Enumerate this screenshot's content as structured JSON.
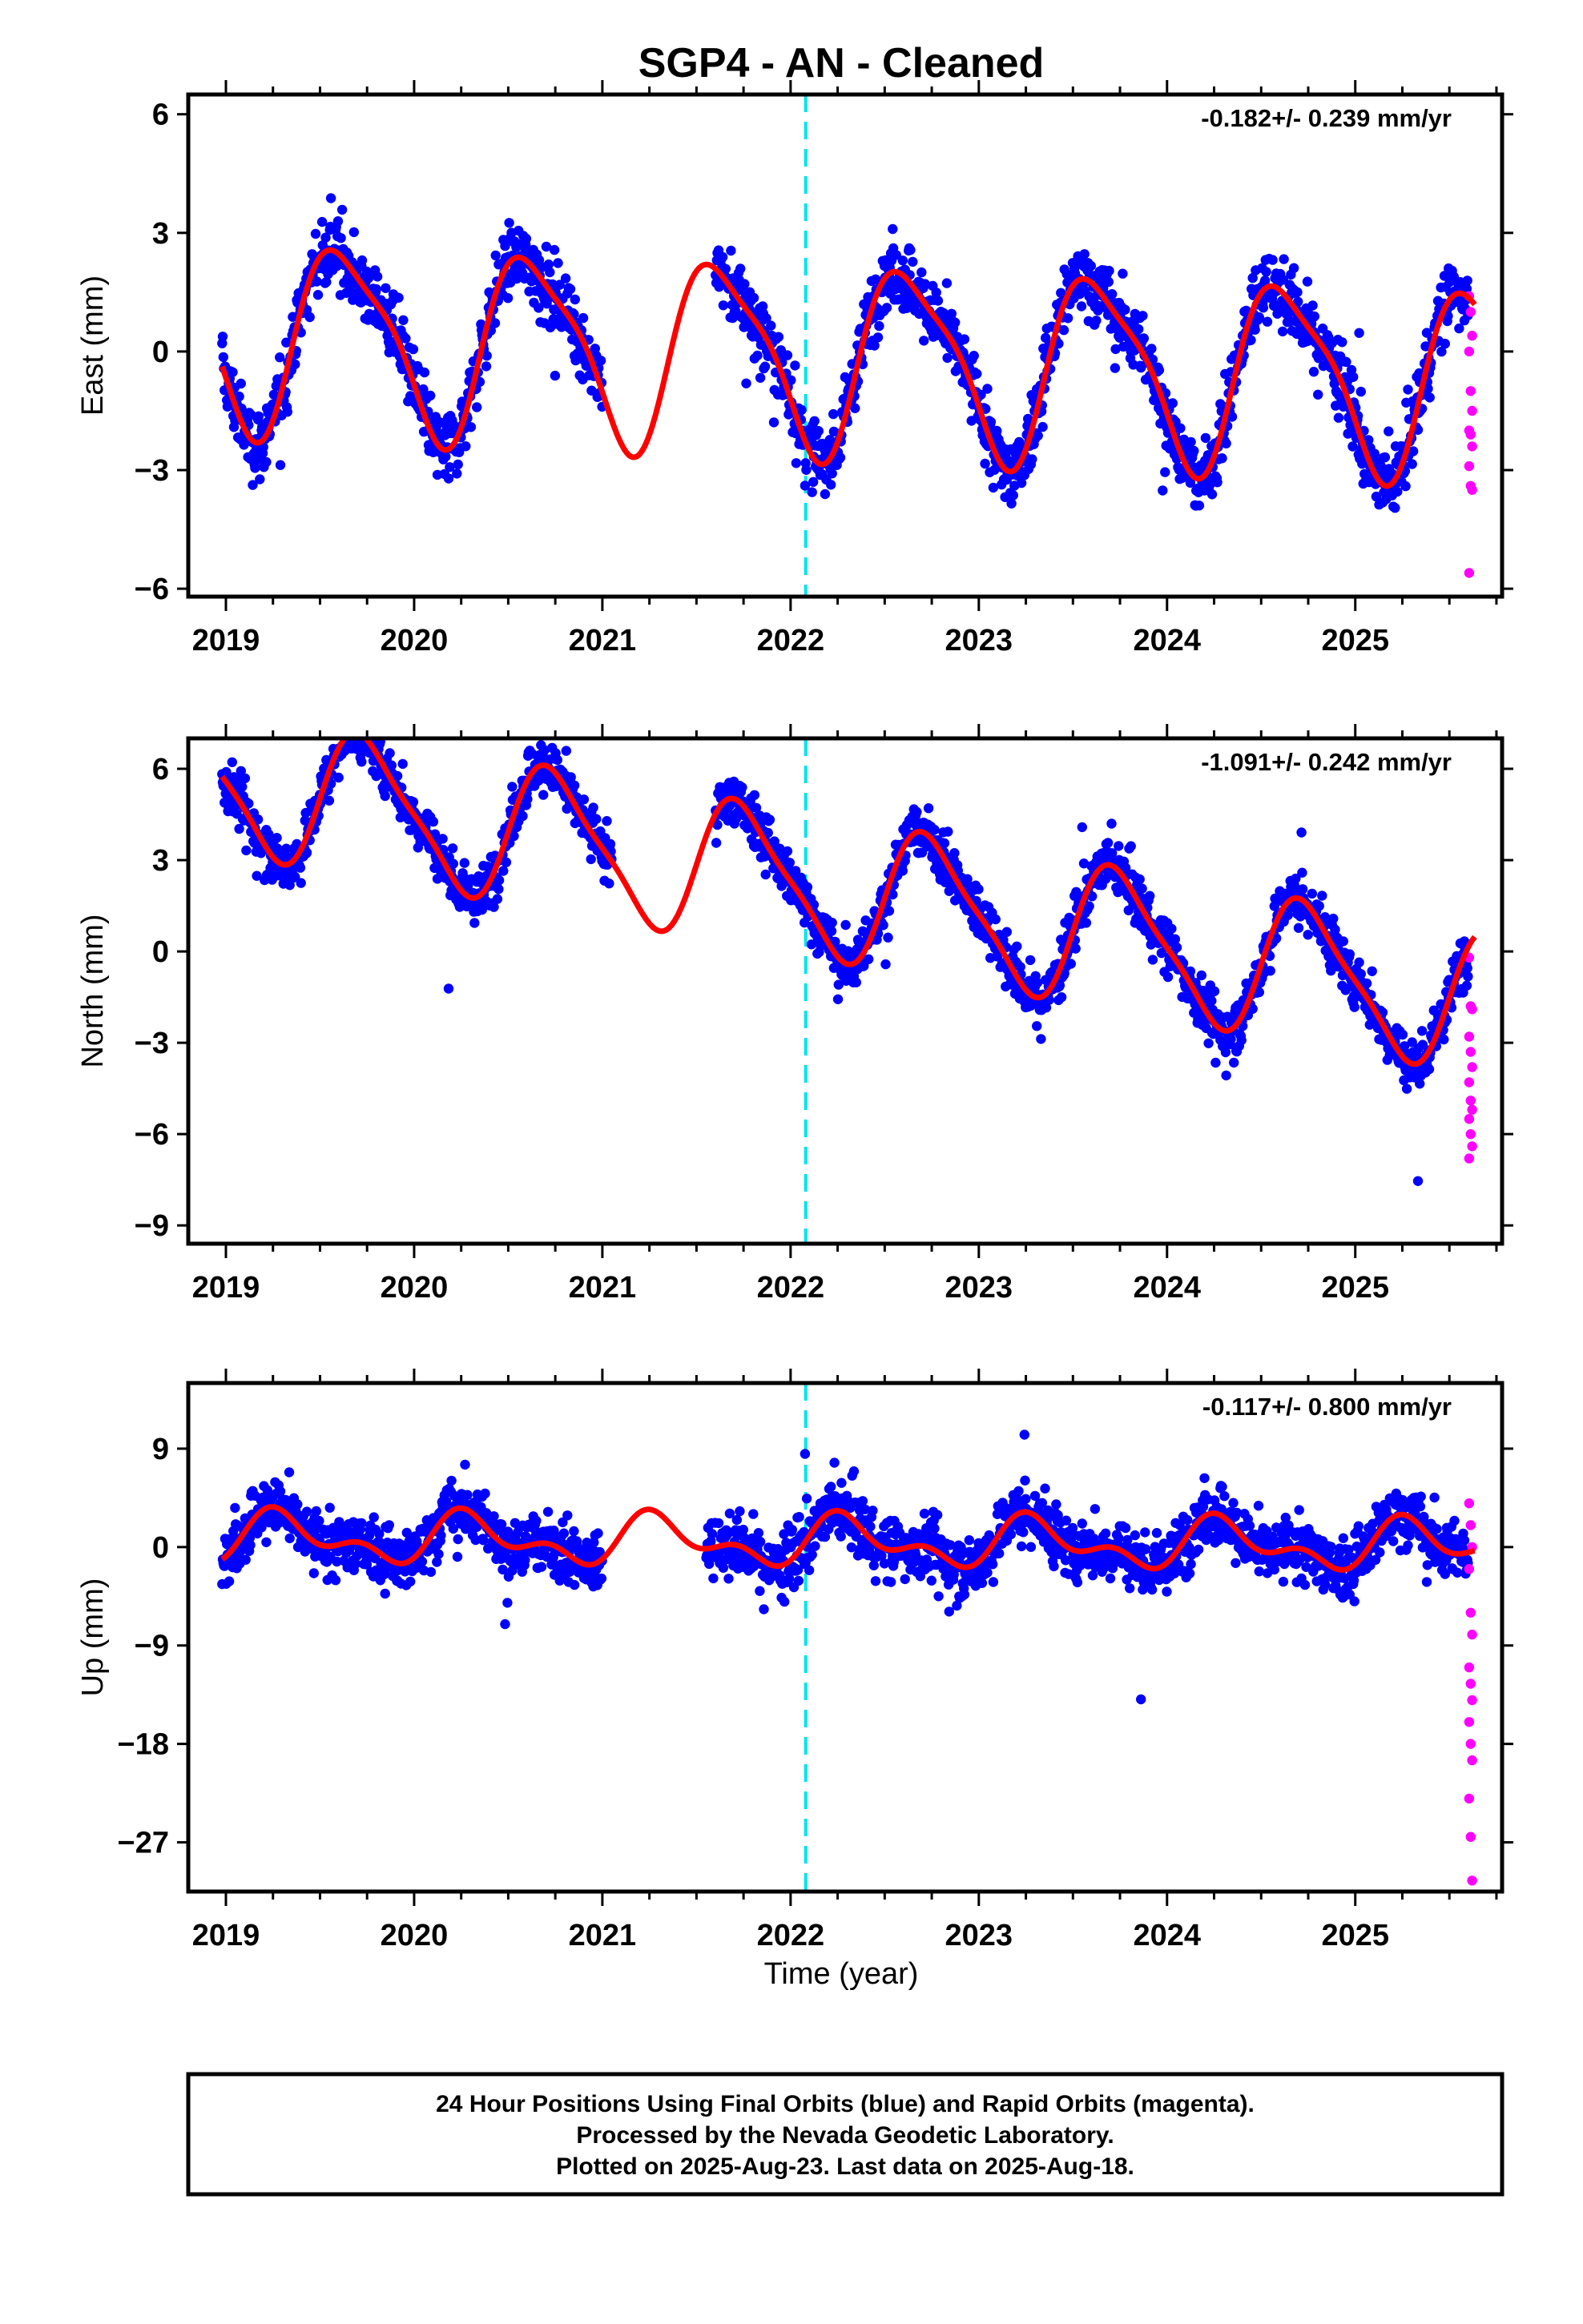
{
  "chart_data": {
    "type": "scatter",
    "title": "SGP4  - AN - Cleaned",
    "xlabel": "Time (year)",
    "x_ticks": [
      "2019",
      "2020",
      "2021",
      "2022",
      "2023",
      "2024",
      "2025"
    ],
    "xlim": [
      2018.8,
      2025.78
    ],
    "event_line_x": 2022.08,
    "colors": {
      "final": "#0000ff",
      "rapid": "#ff00ff",
      "model": "#ff0000",
      "event": "#00e5ee",
      "frame": "#000000"
    },
    "legend": {
      "position": "bottom",
      "lines": [
        "24 Hour Positions Using Final Orbits (blue) and Rapid Orbits (magenta).",
        "Processed by the Nevada Geodetic Laboratory.",
        "Plotted on 2025-Aug-23. Last data on 2025-Aug-18."
      ]
    },
    "panels": [
      {
        "ylabel": "East (mm)",
        "ylim": [
          -6.2,
          6.5
        ],
        "yticks": [
          6,
          3,
          0,
          -3,
          -6
        ],
        "ytick_labels": [
          "6",
          "3",
          "0",
          "−3",
          "−6"
        ],
        "rate_label": "-0.182+/- 0.239 mm/yr",
        "trend": {
          "a0": -0.1,
          "slope": -0.182,
          "amp": 2.3,
          "phase": 2019.38,
          "amp2": 0.55,
          "phase2": 2019.33
        },
        "noise": 1.0,
        "gap": [
          2021.0,
          2021.6
        ],
        "rapid_values": [
          1.4,
          1.0,
          0.4,
          0.0,
          -1.0,
          -1.5,
          -2.0,
          -2.1,
          -2.4,
          -2.9,
          -3.4,
          -3.5,
          -5.6
        ]
      },
      {
        "ylabel": "North (mm)",
        "ylim": [
          -9.6,
          7.0
        ],
        "yticks": [
          6,
          3,
          0,
          -3,
          -6,
          -9
        ],
        "ytick_labels": [
          "6",
          "3",
          "0",
          "−3",
          "−6",
          "−9"
        ],
        "rate_label": "-1.091+/- 0.242 mm/yr",
        "trend": {
          "a0": 2.3,
          "slope": -1.091,
          "amp": 2.2,
          "phase": 2019.5,
          "amp2": 0.5,
          "phase2": 2019.5
        },
        "noise": 1.0,
        "gap": [
          2021.05,
          2021.6
        ],
        "rapid_values": [
          -0.2,
          -1.8,
          -1.9,
          -2.8,
          -3.3,
          -3.8,
          -4.3,
          -4.9,
          -5.2,
          -5.5,
          -6.0,
          -6.4,
          -6.8
        ]
      },
      {
        "ylabel": "Up (mm)",
        "ylim": [
          -31.5,
          15.0
        ],
        "yticks": [
          9,
          0,
          -9,
          -18,
          -27
        ],
        "ytick_labels": [
          "9",
          "0",
          "−9",
          "−18",
          "−27"
        ],
        "rate_label": "-0.117+/- 0.800 mm/yr",
        "trend": {
          "a0": 0.5,
          "slope": -0.117,
          "amp": 1.8,
          "phase": 2019.05,
          "amp2": 1.2,
          "phase2": 2019.1
        },
        "noise": 3.2,
        "gap": [
          2021.0,
          2021.55
        ],
        "rapid_values": [
          4.0,
          2.0,
          0.0,
          -2.0,
          -6.0,
          -8.0,
          -11.0,
          -12.5,
          -14.0,
          -16.0,
          -18.0,
          -19.5,
          -23.0,
          -26.5,
          -30.5
        ]
      }
    ]
  }
}
